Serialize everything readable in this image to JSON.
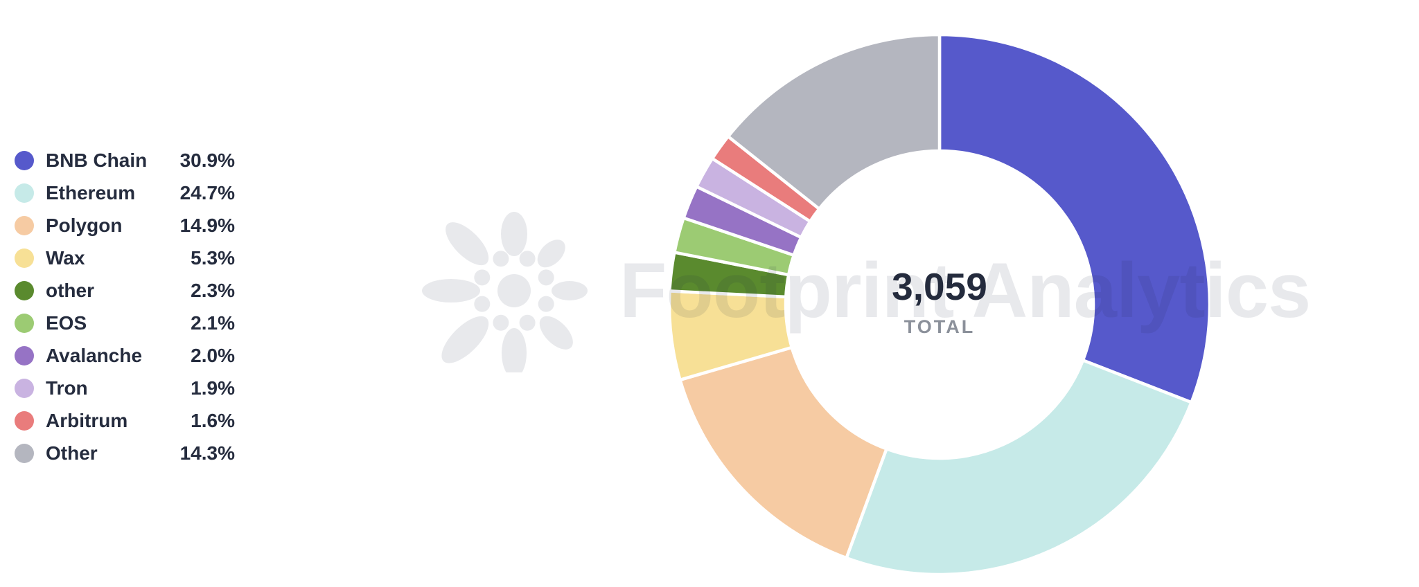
{
  "watermark": {
    "text": "Footprint Analytics",
    "logo": "footprint-flower-logo"
  },
  "center": {
    "value": "3,059",
    "label": "TOTAL"
  },
  "chart_data": {
    "type": "pie",
    "subtype": "donut",
    "title": "",
    "total_value": "3,059",
    "total_label": "TOTAL",
    "legend_position": "left",
    "direction": "clockwise",
    "start_angle_deg": 0,
    "inner_radius_ratio": 0.57,
    "gap_color": "#ffffff",
    "categories": [
      "BNB Chain",
      "Ethereum",
      "Polygon",
      "Wax",
      "other",
      "EOS",
      "Avalanche",
      "Tron",
      "Arbitrum",
      "Other"
    ],
    "values": [
      30.9,
      24.7,
      14.9,
      5.3,
      2.3,
      2.1,
      2.0,
      1.9,
      1.6,
      14.3
    ],
    "labels": [
      "30.9%",
      "24.7%",
      "14.9%",
      "5.3%",
      "2.3%",
      "2.1%",
      "2.0%",
      "1.9%",
      "1.6%",
      "14.3%"
    ],
    "colors": [
      "#5659CB",
      "#C6EAE8",
      "#F6CBA3",
      "#F7E096",
      "#5A8A2E",
      "#9CCB73",
      "#9673C5",
      "#C9B3E1",
      "#E97C7C",
      "#B4B6BF"
    ],
    "text_color": "#252C3E"
  }
}
